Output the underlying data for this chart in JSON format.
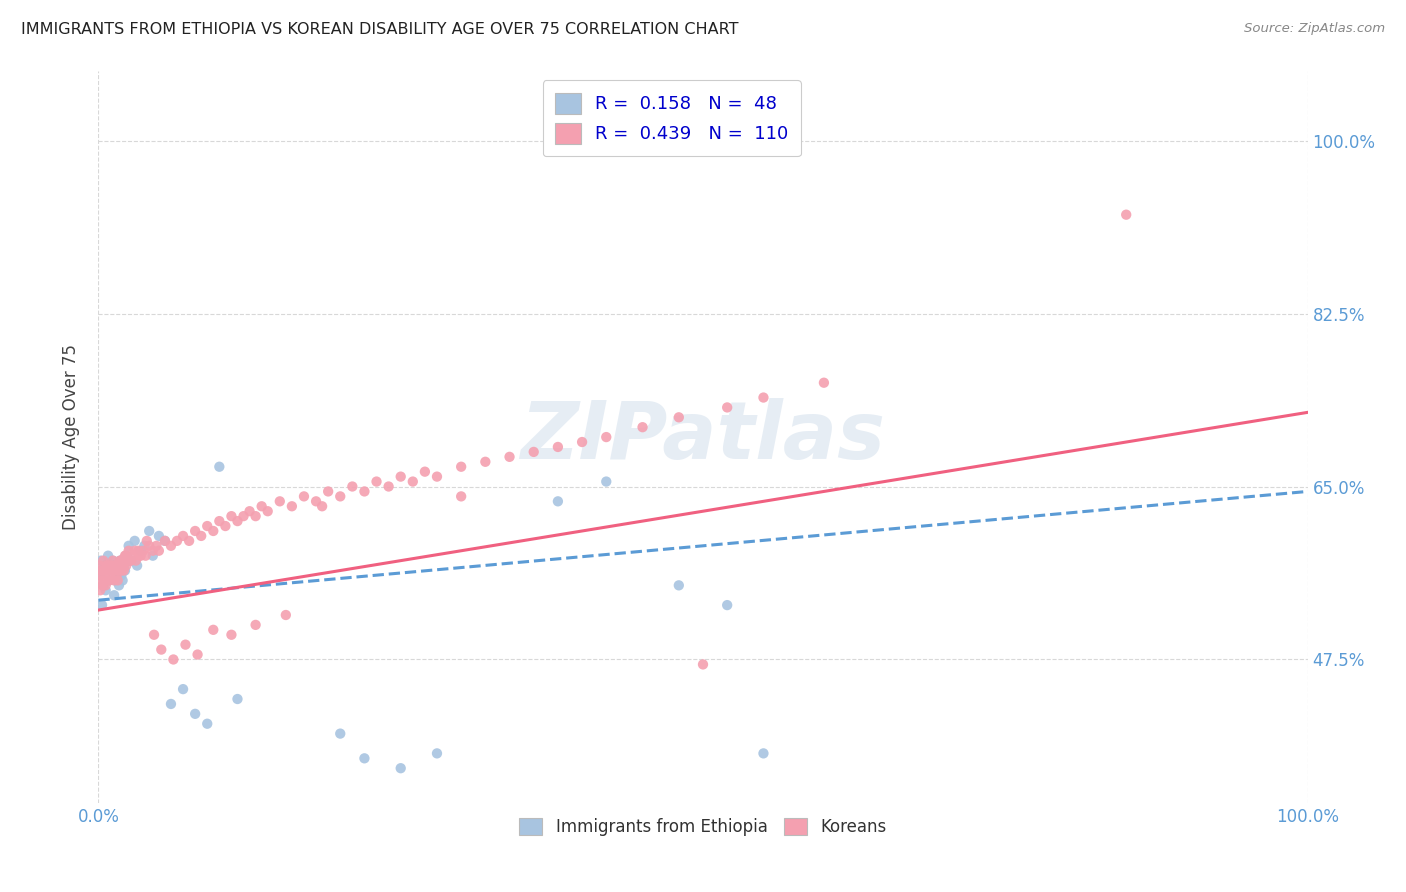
{
  "title": "IMMIGRANTS FROM ETHIOPIA VS KOREAN DISABILITY AGE OVER 75 CORRELATION CHART",
  "source": "Source: ZipAtlas.com",
  "ylabel": "Disability Age Over 75",
  "ethiopia_R": 0.158,
  "ethiopia_N": 48,
  "korean_R": 0.439,
  "korean_N": 110,
  "ethiopia_color": "#a8c4e0",
  "korean_color": "#f4a0b0",
  "ethiopia_line_color": "#5b9bd5",
  "korean_line_color": "#f06080",
  "legend_label_ethiopia": "Immigrants from Ethiopia",
  "legend_label_korean": "Koreans",
  "background_color": "#ffffff",
  "grid_color": "#d8d8d8",
  "y_ticks": [
    47.5,
    65.0,
    82.5,
    100.0
  ],
  "xlim": [
    0,
    100
  ],
  "ylim": [
    33,
    107
  ],
  "eth_line_start": 53.5,
  "eth_line_end": 64.5,
  "kor_line_start": 52.5,
  "kor_line_end": 72.5,
  "ethiopia_x": [
    0.1,
    0.2,
    0.3,
    0.4,
    0.5,
    0.6,
    0.7,
    0.8,
    0.9,
    1.0,
    1.1,
    1.2,
    1.3,
    1.4,
    1.5,
    1.6,
    1.7,
    1.8,
    1.9,
    2.0,
    2.1,
    2.2,
    2.3,
    2.5,
    2.7,
    3.0,
    3.2,
    3.5,
    3.8,
    4.2,
    4.5,
    5.0,
    5.5,
    6.0,
    7.0,
    8.0,
    9.0,
    10.0,
    11.5,
    20.0,
    22.0,
    25.0,
    28.0,
    38.0,
    42.0,
    48.0,
    52.0,
    55.0
  ],
  "ethiopia_y": [
    56.0,
    57.5,
    53.0,
    55.0,
    57.0,
    54.5,
    56.5,
    58.0,
    55.5,
    57.0,
    56.5,
    57.5,
    54.0,
    55.5,
    57.0,
    56.0,
    55.0,
    57.5,
    56.0,
    55.5,
    57.0,
    56.5,
    58.0,
    59.0,
    57.5,
    59.5,
    57.0,
    58.5,
    59.0,
    60.5,
    58.0,
    60.0,
    59.5,
    43.0,
    44.5,
    42.0,
    41.0,
    67.0,
    43.5,
    40.0,
    37.5,
    36.5,
    38.0,
    63.5,
    65.5,
    55.0,
    53.0,
    38.0
  ],
  "korean_x": [
    0.1,
    0.2,
    0.3,
    0.4,
    0.5,
    0.6,
    0.7,
    0.8,
    0.9,
    1.0,
    1.1,
    1.2,
    1.3,
    1.4,
    1.5,
    1.6,
    1.7,
    1.8,
    1.9,
    2.0,
    2.1,
    2.2,
    2.3,
    2.4,
    2.5,
    2.7,
    2.9,
    3.1,
    3.3,
    3.5,
    3.7,
    3.9,
    4.2,
    4.5,
    4.8,
    5.0,
    5.5,
    6.0,
    6.5,
    7.0,
    7.5,
    8.0,
    8.5,
    9.0,
    9.5,
    10.0,
    10.5,
    11.0,
    11.5,
    12.0,
    12.5,
    13.0,
    13.5,
    14.0,
    15.0,
    16.0,
    17.0,
    18.0,
    19.0,
    20.0,
    21.0,
    22.0,
    23.0,
    24.0,
    25.0,
    26.0,
    27.0,
    28.0,
    30.0,
    32.0,
    34.0,
    36.0,
    38.0,
    40.0,
    42.0,
    45.0,
    48.0,
    52.0,
    55.0,
    60.0,
    0.15,
    0.25,
    0.35,
    0.55,
    0.75,
    0.95,
    1.05,
    1.25,
    1.45,
    1.65,
    1.85,
    2.05,
    2.25,
    2.6,
    3.0,
    3.4,
    4.0,
    4.6,
    5.2,
    6.2,
    7.2,
    8.2,
    9.5,
    11.0,
    13.0,
    15.5,
    18.5,
    30.0,
    50.0,
    85.0
  ],
  "korean_y": [
    57.0,
    56.0,
    55.5,
    57.5,
    56.5,
    55.0,
    57.0,
    56.5,
    55.5,
    57.0,
    56.5,
    57.5,
    55.5,
    57.0,
    56.0,
    55.5,
    57.0,
    57.5,
    56.5,
    57.0,
    56.5,
    58.0,
    57.0,
    57.5,
    58.5,
    57.5,
    58.0,
    57.5,
    58.5,
    58.0,
    58.5,
    58.0,
    59.0,
    58.5,
    59.0,
    58.5,
    59.5,
    59.0,
    59.5,
    60.0,
    59.5,
    60.5,
    60.0,
    61.0,
    60.5,
    61.5,
    61.0,
    62.0,
    61.5,
    62.0,
    62.5,
    62.0,
    63.0,
    62.5,
    63.5,
    63.0,
    64.0,
    63.5,
    64.5,
    64.0,
    65.0,
    64.5,
    65.5,
    65.0,
    66.0,
    65.5,
    66.5,
    66.0,
    67.0,
    67.5,
    68.0,
    68.5,
    69.0,
    69.5,
    70.0,
    71.0,
    72.0,
    73.0,
    74.0,
    75.5,
    54.5,
    56.5,
    55.0,
    55.5,
    57.0,
    56.0,
    57.0,
    56.5,
    57.0,
    56.5,
    57.5,
    57.0,
    58.0,
    57.5,
    58.5,
    58.0,
    59.5,
    50.0,
    48.5,
    47.5,
    49.0,
    48.0,
    50.5,
    50.0,
    51.0,
    52.0,
    63.0,
    64.0,
    47.0,
    92.5
  ]
}
